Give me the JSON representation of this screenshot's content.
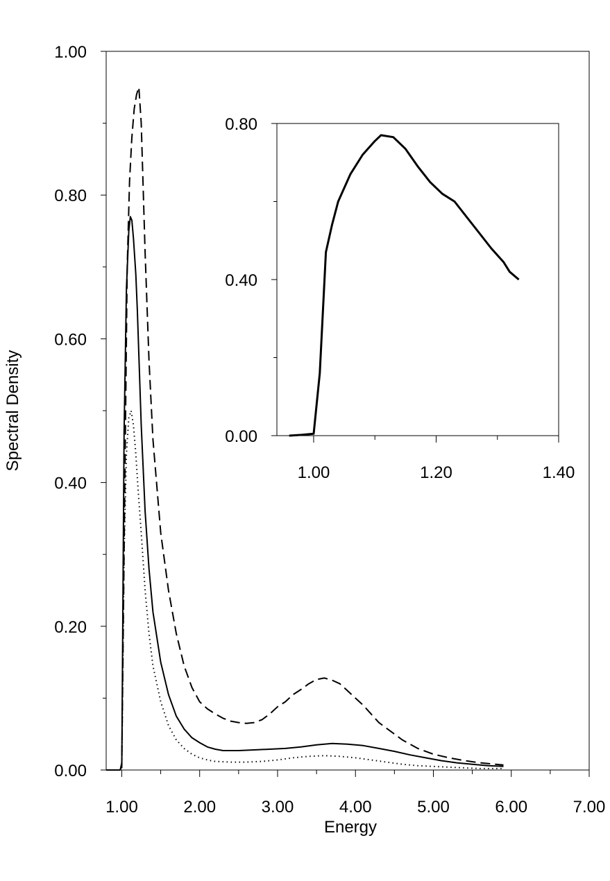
{
  "chart_data": [
    {
      "type": "line",
      "title": "",
      "xlabel": "Energy",
      "ylabel": "Spectral Density",
      "xlim": [
        0.8,
        7.0
      ],
      "ylim": [
        0.0,
        1.0
      ],
      "x_ticks": [
        "1.00",
        "2.00",
        "3.00",
        "4.00",
        "5.00",
        "6.00",
        "7.00"
      ],
      "y_ticks": [
        "0.00",
        "0.20",
        "0.40",
        "0.60",
        "0.80",
        "1.00"
      ],
      "grid": false,
      "legend": "none",
      "series": [
        {
          "style": "dashed",
          "x": [
            0.8,
            0.98,
            1.0,
            1.04,
            1.07,
            1.1,
            1.13,
            1.16,
            1.19,
            1.22,
            1.25,
            1.3,
            1.35,
            1.4,
            1.5,
            1.6,
            1.7,
            1.8,
            1.9,
            2.0,
            2.1,
            2.2,
            2.3,
            2.4,
            2.5,
            2.6,
            2.7,
            2.8,
            2.9,
            3.0,
            3.1,
            3.2,
            3.3,
            3.4,
            3.5,
            3.6,
            3.7,
            3.8,
            3.9,
            4.0,
            4.1,
            4.2,
            4.3,
            4.4,
            4.5,
            4.6,
            4.7,
            4.8,
            4.9,
            5.0,
            5.2,
            5.4,
            5.6,
            5.8,
            5.9
          ],
          "y": [
            0.0,
            0.0,
            0.01,
            0.4,
            0.7,
            0.82,
            0.88,
            0.92,
            0.94,
            0.95,
            0.9,
            0.72,
            0.57,
            0.46,
            0.33,
            0.25,
            0.19,
            0.145,
            0.115,
            0.095,
            0.085,
            0.078,
            0.072,
            0.068,
            0.066,
            0.065,
            0.066,
            0.07,
            0.078,
            0.088,
            0.095,
            0.105,
            0.112,
            0.12,
            0.126,
            0.128,
            0.125,
            0.12,
            0.11,
            0.1,
            0.09,
            0.078,
            0.066,
            0.058,
            0.05,
            0.042,
            0.036,
            0.03,
            0.026,
            0.022,
            0.017,
            0.013,
            0.01,
            0.008,
            0.007
          ]
        },
        {
          "style": "solid",
          "x": [
            0.8,
            0.98,
            1.0,
            1.03,
            1.06,
            1.09,
            1.11,
            1.13,
            1.15,
            1.18,
            1.2,
            1.25,
            1.3,
            1.35,
            1.4,
            1.5,
            1.6,
            1.7,
            1.8,
            1.9,
            2.0,
            2.1,
            2.2,
            2.3,
            2.5,
            2.7,
            2.9,
            3.1,
            3.3,
            3.5,
            3.7,
            3.9,
            4.1,
            4.3,
            4.5,
            4.7,
            4.9,
            5.1,
            5.3,
            5.5,
            5.7,
            5.9
          ],
          "y": [
            0.0,
            0.0,
            0.005,
            0.47,
            0.67,
            0.75,
            0.77,
            0.765,
            0.74,
            0.69,
            0.64,
            0.48,
            0.36,
            0.28,
            0.22,
            0.15,
            0.105,
            0.075,
            0.057,
            0.045,
            0.038,
            0.032,
            0.029,
            0.027,
            0.027,
            0.028,
            0.029,
            0.03,
            0.032,
            0.035,
            0.037,
            0.036,
            0.034,
            0.03,
            0.026,
            0.021,
            0.017,
            0.013,
            0.01,
            0.008,
            0.006,
            0.005
          ]
        },
        {
          "style": "dotted",
          "x": [
            0.8,
            0.98,
            1.0,
            1.03,
            1.06,
            1.09,
            1.12,
            1.15,
            1.18,
            1.21,
            1.25,
            1.3,
            1.35,
            1.4,
            1.5,
            1.6,
            1.7,
            1.8,
            1.9,
            2.0,
            2.1,
            2.2,
            2.4,
            2.6,
            2.8,
            3.0,
            3.2,
            3.4,
            3.6,
            3.8,
            4.0,
            4.2,
            4.4,
            4.6,
            4.8,
            5.0,
            5.2,
            5.4,
            5.6,
            5.9
          ],
          "y": [
            0.0,
            0.0,
            0.003,
            0.3,
            0.44,
            0.49,
            0.5,
            0.48,
            0.44,
            0.39,
            0.33,
            0.25,
            0.19,
            0.145,
            0.095,
            0.062,
            0.042,
            0.03,
            0.022,
            0.017,
            0.014,
            0.012,
            0.011,
            0.011,
            0.012,
            0.014,
            0.017,
            0.019,
            0.02,
            0.019,
            0.017,
            0.014,
            0.011,
            0.008,
            0.006,
            0.005,
            0.004,
            0.003,
            0.002,
            0.002
          ]
        }
      ]
    },
    {
      "type": "line",
      "title": "",
      "xlabel": "",
      "ylabel": "",
      "xlim": [
        0.94,
        1.4
      ],
      "ylim": [
        0.0,
        0.8
      ],
      "x_ticks": [
        "1.00",
        "1.20",
        "1.40"
      ],
      "y_ticks": [
        "0.00",
        "0.40",
        "0.80"
      ],
      "grid": false,
      "legend": "none",
      "series": [
        {
          "style": "solid",
          "x": [
            0.96,
            0.98,
            1.0,
            1.01,
            1.02,
            1.03,
            1.04,
            1.06,
            1.08,
            1.1,
            1.11,
            1.13,
            1.15,
            1.17,
            1.19,
            1.21,
            1.23,
            1.25,
            1.27,
            1.29,
            1.31,
            1.32,
            1.335
          ],
          "y": [
            0.0,
            0.002,
            0.005,
            0.16,
            0.47,
            0.54,
            0.6,
            0.67,
            0.72,
            0.755,
            0.77,
            0.765,
            0.735,
            0.69,
            0.65,
            0.62,
            0.6,
            0.56,
            0.52,
            0.48,
            0.445,
            0.42,
            0.4
          ]
        }
      ]
    }
  ]
}
